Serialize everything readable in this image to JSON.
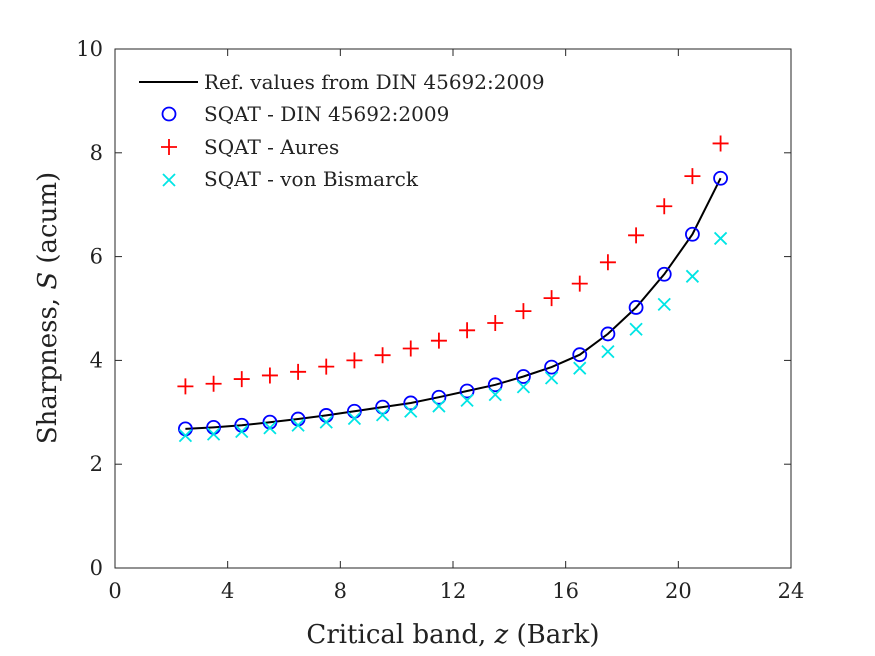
{
  "chart_data": {
    "type": "line+scatter",
    "xlabel": {
      "prefix": "Critical band, ",
      "symbol": "z",
      "suffix": " (Bark)"
    },
    "ylabel": {
      "prefix": "Sharpness, ",
      "symbol": "S",
      "suffix": " (acum)"
    },
    "xlim": [
      0,
      24
    ],
    "ylim": [
      0,
      10
    ],
    "xticks": [
      0,
      4,
      8,
      12,
      16,
      20,
      24
    ],
    "yticks": [
      0,
      2,
      4,
      6,
      8,
      10
    ],
    "grid": false,
    "legend_position": "top-left",
    "x": [
      2.5,
      3.5,
      4.5,
      5.5,
      6.5,
      7.5,
      8.5,
      9.5,
      10.5,
      11.5,
      12.5,
      13.5,
      14.5,
      15.5,
      16.5,
      17.5,
      18.5,
      19.5,
      20.5,
      21.5
    ],
    "series": [
      {
        "name": "Ref. values from DIN 45692:2009",
        "style": "line",
        "color": "#000000",
        "values": [
          2.68,
          2.71,
          2.75,
          2.81,
          2.87,
          2.94,
          3.02,
          3.1,
          3.18,
          3.29,
          3.41,
          3.53,
          3.69,
          3.87,
          4.11,
          4.51,
          5.02,
          5.66,
          6.43,
          7.51
        ]
      },
      {
        "name": "SQAT - DIN 45692:2009",
        "style": "circle",
        "color": "#0000ff",
        "values": [
          2.68,
          2.71,
          2.75,
          2.81,
          2.87,
          2.94,
          3.02,
          3.1,
          3.18,
          3.29,
          3.41,
          3.53,
          3.69,
          3.87,
          4.11,
          4.51,
          5.02,
          5.66,
          6.43,
          7.51
        ]
      },
      {
        "name": "SQAT - Aures",
        "style": "plus",
        "color": "#ff0000",
        "values": [
          3.5,
          3.55,
          3.64,
          3.71,
          3.78,
          3.88,
          4.0,
          4.1,
          4.23,
          4.38,
          4.58,
          4.72,
          4.95,
          5.2,
          5.48,
          5.89,
          6.41,
          6.97,
          7.55,
          8.18
        ]
      },
      {
        "name": "SQAT - von Bismarck",
        "style": "cross",
        "color": "#00e5e5",
        "values": [
          2.55,
          2.58,
          2.63,
          2.7,
          2.75,
          2.81,
          2.88,
          2.95,
          3.02,
          3.12,
          3.23,
          3.34,
          3.49,
          3.66,
          3.85,
          4.17,
          4.6,
          5.08,
          5.62,
          6.35
        ]
      }
    ]
  }
}
